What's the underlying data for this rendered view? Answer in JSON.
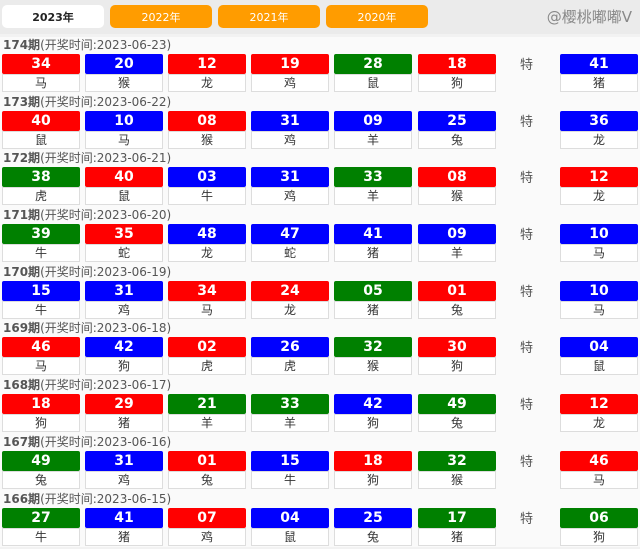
{
  "tabs": [
    {
      "label": "2023年",
      "active": true
    },
    {
      "label": "2022年",
      "active": false
    },
    {
      "label": "2021年",
      "active": false
    },
    {
      "label": "2020年",
      "active": false
    }
  ],
  "colors": {
    "red": "#ff0000",
    "blue": "#0000ff",
    "green": "#008000"
  },
  "special_label": "特",
  "watermark": "@樱桃嘟嘟V",
  "draws": [
    {
      "period": "174期",
      "time": "(开奖时间:2023-06-23)",
      "balls": [
        [
          "34",
          "red",
          "马"
        ],
        [
          "20",
          "blue",
          "猴"
        ],
        [
          "12",
          "red",
          "龙"
        ],
        [
          "19",
          "red",
          "鸡"
        ],
        [
          "28",
          "green",
          "鼠"
        ],
        [
          "18",
          "red",
          "狗"
        ]
      ],
      "special": [
        "41",
        "blue",
        "猪"
      ]
    },
    {
      "period": "173期",
      "time": "(开奖时间:2023-06-22)",
      "balls": [
        [
          "40",
          "red",
          "鼠"
        ],
        [
          "10",
          "blue",
          "马"
        ],
        [
          "08",
          "red",
          "猴"
        ],
        [
          "31",
          "blue",
          "鸡"
        ],
        [
          "09",
          "blue",
          "羊"
        ],
        [
          "25",
          "blue",
          "兔"
        ]
      ],
      "special": [
        "36",
        "blue",
        "龙"
      ]
    },
    {
      "period": "172期",
      "time": "(开奖时间:2023-06-21)",
      "balls": [
        [
          "38",
          "green",
          "虎"
        ],
        [
          "40",
          "red",
          "鼠"
        ],
        [
          "03",
          "blue",
          "牛"
        ],
        [
          "31",
          "blue",
          "鸡"
        ],
        [
          "33",
          "green",
          "羊"
        ],
        [
          "08",
          "red",
          "猴"
        ]
      ],
      "special": [
        "12",
        "red",
        "龙"
      ]
    },
    {
      "period": "171期",
      "time": "(开奖时间:2023-06-20)",
      "balls": [
        [
          "39",
          "green",
          "牛"
        ],
        [
          "35",
          "red",
          "蛇"
        ],
        [
          "48",
          "blue",
          "龙"
        ],
        [
          "47",
          "blue",
          "蛇"
        ],
        [
          "41",
          "blue",
          "猪"
        ],
        [
          "09",
          "blue",
          "羊"
        ]
      ],
      "special": [
        "10",
        "blue",
        "马"
      ]
    },
    {
      "period": "170期",
      "time": "(开奖时间:2023-06-19)",
      "balls": [
        [
          "15",
          "blue",
          "牛"
        ],
        [
          "31",
          "blue",
          "鸡"
        ],
        [
          "34",
          "red",
          "马"
        ],
        [
          "24",
          "red",
          "龙"
        ],
        [
          "05",
          "green",
          "猪"
        ],
        [
          "01",
          "red",
          "兔"
        ]
      ],
      "special": [
        "10",
        "blue",
        "马"
      ]
    },
    {
      "period": "169期",
      "time": "(开奖时间:2023-06-18)",
      "balls": [
        [
          "46",
          "red",
          "马"
        ],
        [
          "42",
          "blue",
          "狗"
        ],
        [
          "02",
          "red",
          "虎"
        ],
        [
          "26",
          "blue",
          "虎"
        ],
        [
          "32",
          "green",
          "猴"
        ],
        [
          "30",
          "red",
          "狗"
        ]
      ],
      "special": [
        "04",
        "blue",
        "鼠"
      ]
    },
    {
      "period": "168期",
      "time": "(开奖时间:2023-06-17)",
      "balls": [
        [
          "18",
          "red",
          "狗"
        ],
        [
          "29",
          "red",
          "猪"
        ],
        [
          "21",
          "green",
          "羊"
        ],
        [
          "33",
          "green",
          "羊"
        ],
        [
          "42",
          "blue",
          "狗"
        ],
        [
          "49",
          "green",
          "兔"
        ]
      ],
      "special": [
        "12",
        "red",
        "龙"
      ]
    },
    {
      "period": "167期",
      "time": "(开奖时间:2023-06-16)",
      "balls": [
        [
          "49",
          "green",
          "兔"
        ],
        [
          "31",
          "blue",
          "鸡"
        ],
        [
          "01",
          "red",
          "兔"
        ],
        [
          "15",
          "blue",
          "牛"
        ],
        [
          "18",
          "red",
          "狗"
        ],
        [
          "32",
          "green",
          "猴"
        ]
      ],
      "special": [
        "46",
        "red",
        "马"
      ]
    },
    {
      "period": "166期",
      "time": "(开奖时间:2023-06-15)",
      "balls": [
        [
          "27",
          "green",
          "牛"
        ],
        [
          "41",
          "blue",
          "猪"
        ],
        [
          "07",
          "red",
          "鸡"
        ],
        [
          "04",
          "blue",
          "鼠"
        ],
        [
          "25",
          "blue",
          "兔"
        ],
        [
          "17",
          "green",
          "猪"
        ]
      ],
      "special": [
        "06",
        "green",
        "狗"
      ]
    }
  ]
}
